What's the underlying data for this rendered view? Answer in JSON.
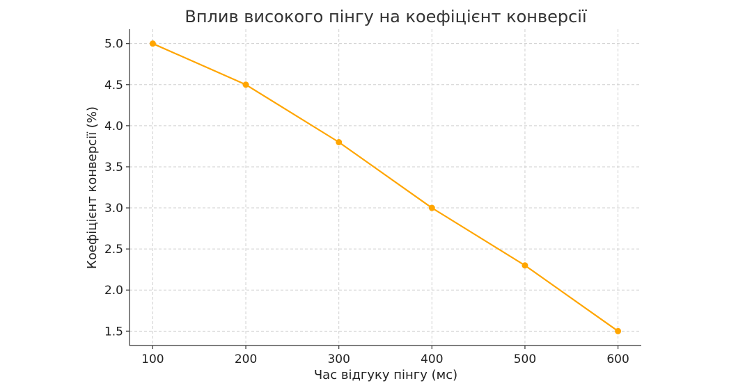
{
  "chart_data": {
    "type": "line",
    "title": "Вплив високого пінгу на коефіцієнт конверсії",
    "xlabel": "Час відгуку пінгу (мс)",
    "ylabel": "Коефіцієнт конверсії (%)",
    "x": [
      100,
      200,
      300,
      400,
      500,
      600
    ],
    "series": [
      {
        "values": [
          5.0,
          4.5,
          3.8,
          3.0,
          2.3,
          1.5
        ],
        "color": "#FFA500"
      }
    ],
    "xticks": [
      "100",
      "200",
      "300",
      "400",
      "500",
      "600"
    ],
    "xtick_values": [
      100,
      200,
      300,
      400,
      500,
      600
    ],
    "yticks": [
      "1.5",
      "2.0",
      "2.5",
      "3.0",
      "3.5",
      "4.0",
      "4.5",
      "5.0"
    ],
    "ytick_values": [
      1.5,
      2.0,
      2.5,
      3.0,
      3.5,
      4.0,
      4.5,
      5.0
    ],
    "xlim": [
      75,
      625
    ],
    "ylim": [
      1.325,
      5.175
    ],
    "grid": true,
    "marker": "circle"
  }
}
